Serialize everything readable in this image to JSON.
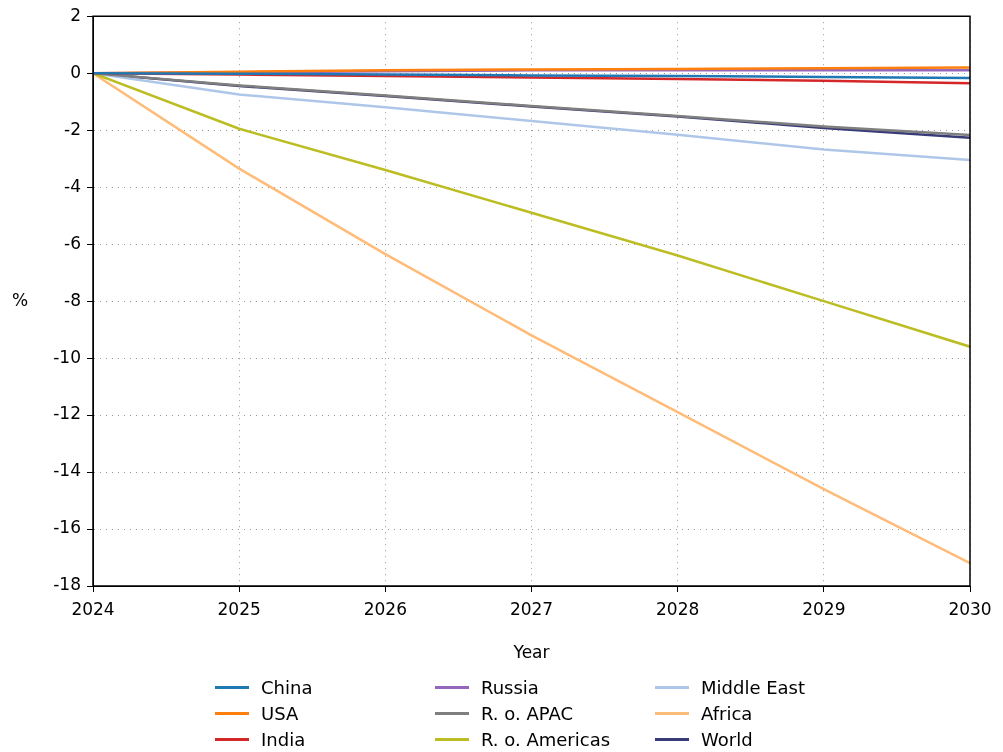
{
  "chart_data": {
    "type": "line",
    "xlabel": "Year",
    "ylabel": "%",
    "x": [
      2024,
      2025,
      2026,
      2027,
      2028,
      2029,
      2030
    ],
    "xlim": [
      2024,
      2030
    ],
    "xticks": [
      2024,
      2025,
      2026,
      2027,
      2028,
      2029,
      2030
    ],
    "ylim": [
      -18,
      2
    ],
    "yticks": [
      -18,
      -16,
      -14,
      -12,
      -10,
      -8,
      -6,
      -4,
      -2,
      0,
      2
    ],
    "grid": true,
    "legend": "bottom",
    "marker": "none",
    "line_style": "solid",
    "series": [
      {
        "name": "China",
        "color": "#1f77b4",
        "values": [
          0,
          -0.02,
          -0.05,
          -0.08,
          -0.1,
          -0.13,
          -0.17
        ]
      },
      {
        "name": "USA",
        "color": "#ff7f0e",
        "values": [
          0,
          0.05,
          0.1,
          0.13,
          0.15,
          0.17,
          0.2
        ]
      },
      {
        "name": "India",
        "color": "#d62728",
        "values": [
          0,
          -0.05,
          -0.1,
          -0.15,
          -0.2,
          -0.27,
          -0.35
        ]
      },
      {
        "name": "Russia",
        "color": "#9467bd",
        "values": [
          0,
          0.03,
          0.07,
          0.1,
          0.1,
          0.1,
          0.1
        ]
      },
      {
        "name": "R. o. APAC",
        "color": "#7f7f7f",
        "values": [
          0,
          -0.43,
          -0.78,
          -1.15,
          -1.5,
          -1.87,
          -2.17
        ]
      },
      {
        "name": "R. o. Americas",
        "color": "#bcbd22",
        "values": [
          0,
          -1.95,
          -3.4,
          -4.9,
          -6.4,
          -8.0,
          -9.6
        ]
      },
      {
        "name": "Middle East",
        "color": "#aec7e8",
        "values": [
          0,
          -0.75,
          -1.2,
          -1.68,
          -2.16,
          -2.68,
          -3.05
        ]
      },
      {
        "name": "Africa",
        "color": "#ffbb78",
        "values": [
          0,
          -3.35,
          -6.35,
          -9.2,
          -11.9,
          -14.6,
          -17.2
        ]
      },
      {
        "name": "World",
        "color": "#393b79",
        "values": [
          0,
          -0.45,
          -0.8,
          -1.17,
          -1.52,
          -1.92,
          -2.27
        ]
      }
    ]
  }
}
